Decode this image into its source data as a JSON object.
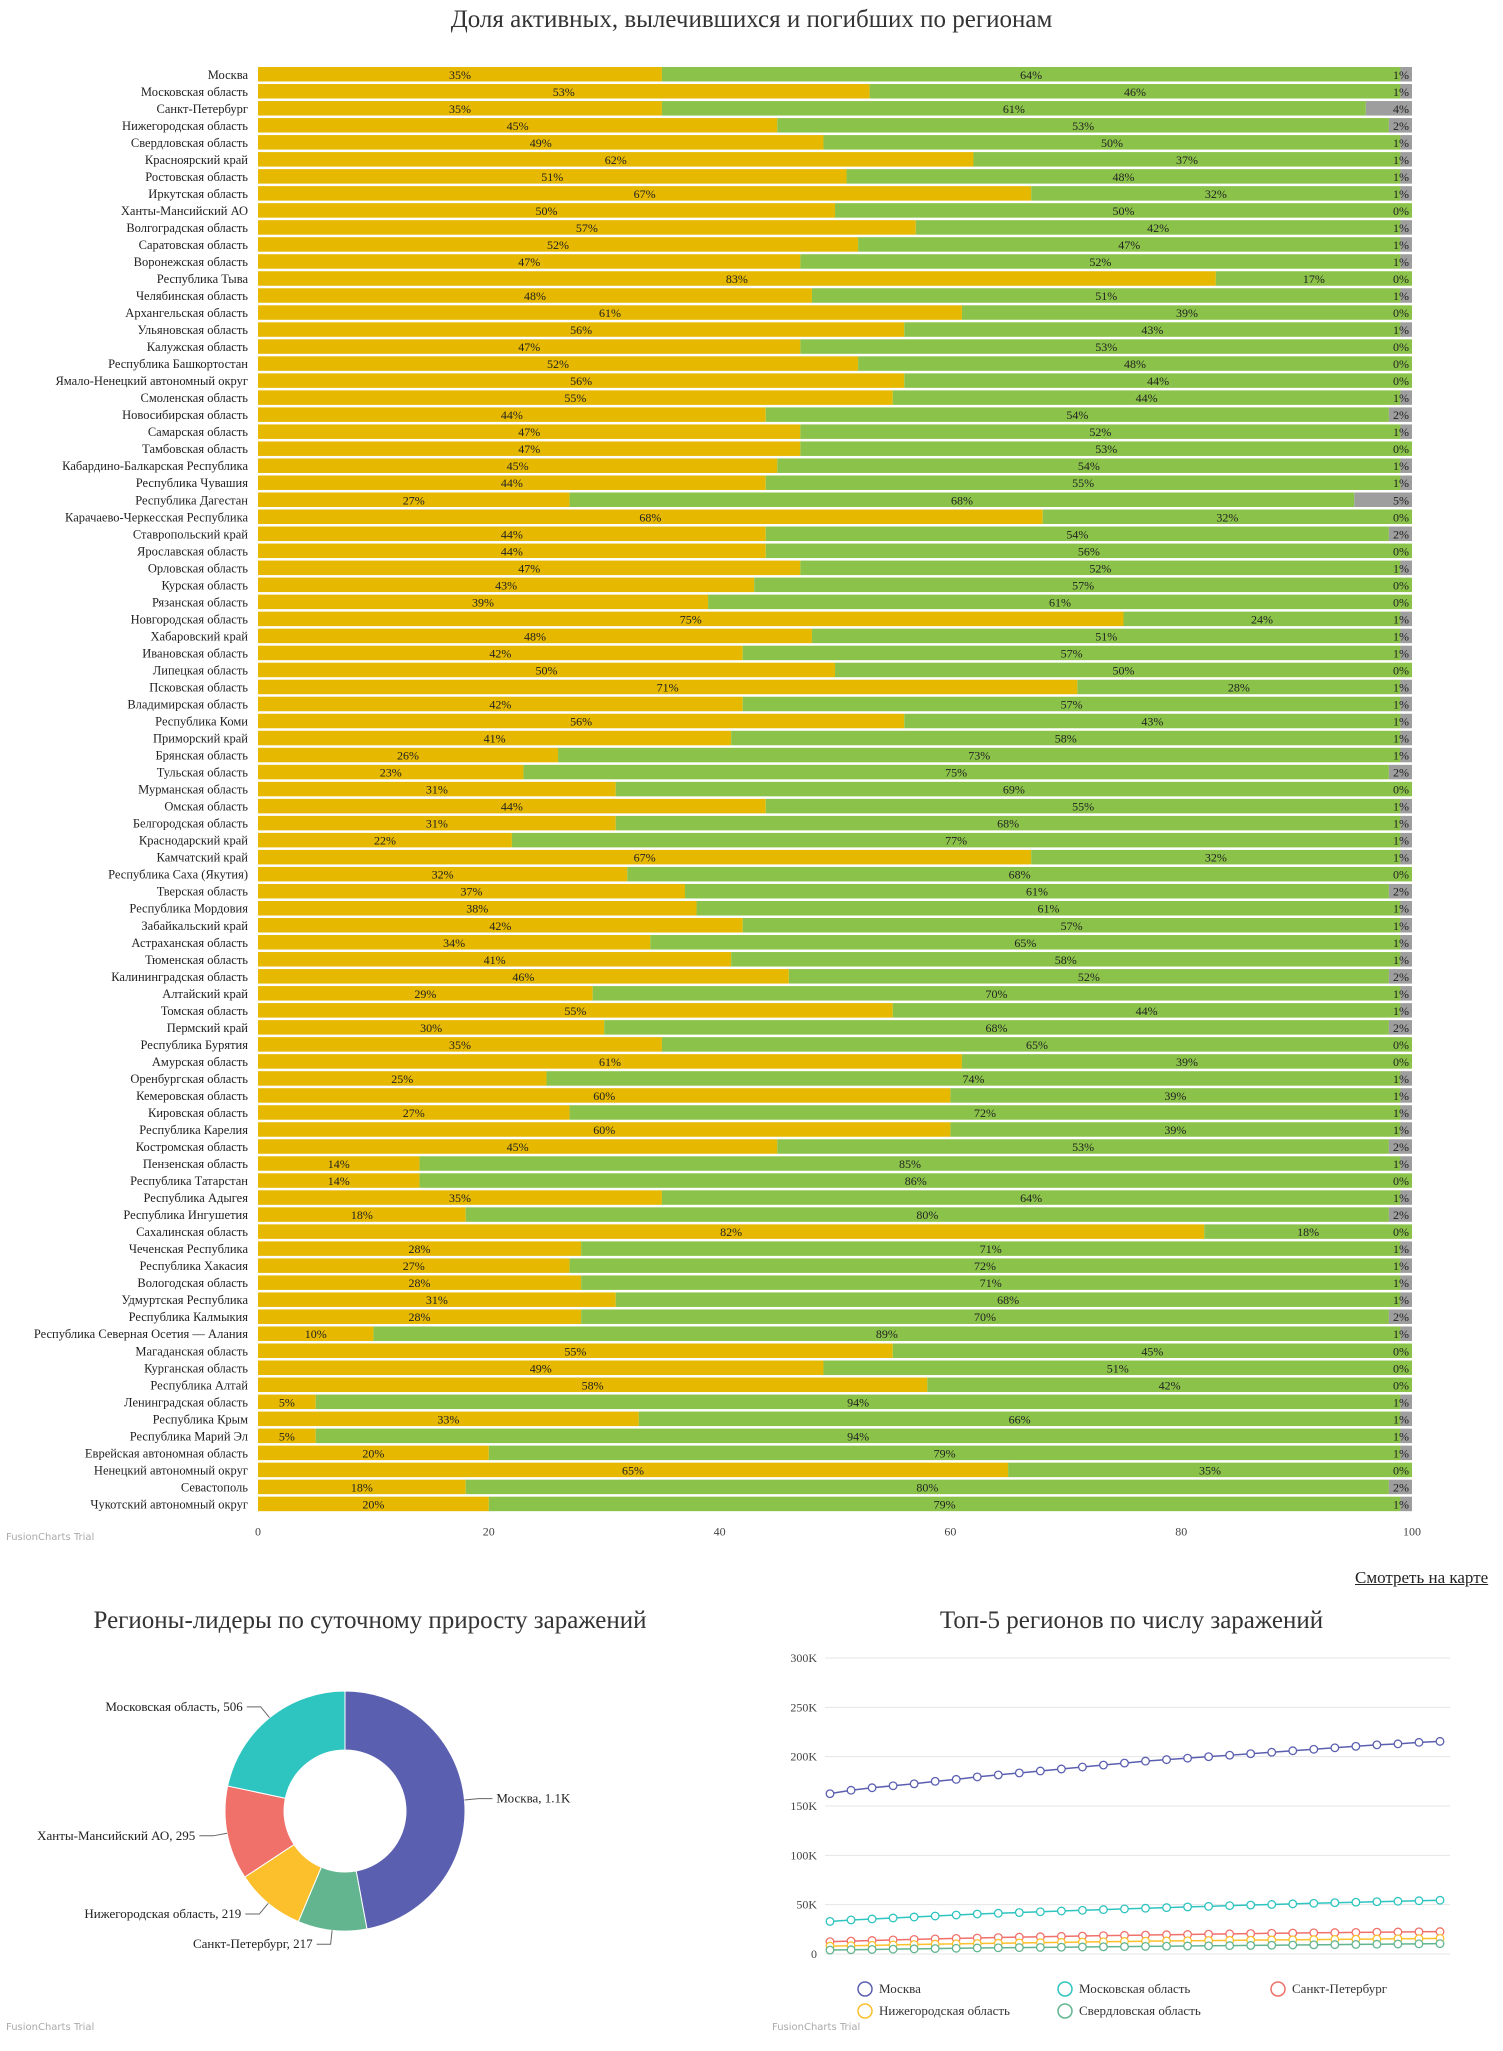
{
  "bar_chart": {
    "title": "Доля активных, вылечившихся и погибших по регионам",
    "trial_label": "FusionCharts Trial",
    "colors": {
      "active": "#e6b800",
      "recovered": "#8bc34a",
      "deaths": "#9e9e9e"
    },
    "x_ticks": [
      "0",
      "20",
      "40",
      "60",
      "80",
      "100"
    ]
  },
  "map_link": "Смотреть на карте",
  "donut_chart": {
    "title": "Регионы-лидеры по суточному приросту заражений",
    "trial_label": "FusionCharts Trial"
  },
  "line_chart": {
    "title": "Топ-5 регионов по числу заражений",
    "trial_label": "FusionCharts Trial",
    "y_ticks": [
      "300K",
      "250K",
      "200K",
      "150K",
      "100K",
      "50K",
      "0"
    ]
  },
  "chart_data": [
    {
      "type": "bar",
      "orientation": "horizontal",
      "stacked": true,
      "xlim": [
        0,
        100
      ],
      "categories": [
        "Москва",
        "Московская область",
        "Санкт-Петербург",
        "Нижегородская область",
        "Свердловская область",
        "Красноярский край",
        "Ростовская область",
        "Иркутская область",
        "Ханты-Мансийский АО",
        "Волгоградская область",
        "Саратовская область",
        "Воронежская область",
        "Республика Тыва",
        "Челябинская область",
        "Архангельская область",
        "Ульяновская область",
        "Калужская область",
        "Республика Башкортостан",
        "Ямало-Ненецкий автономный округ",
        "Смоленская область",
        "Новосибирская область",
        "Самарская область",
        "Тамбовская область",
        "Кабардино-Балкарская Республика",
        "Республика Чувашия",
        "Республика Дагестан",
        "Карачаево-Черкесская Республика",
        "Ставропольский край",
        "Ярославская область",
        "Орловская область",
        "Курская область",
        "Рязанская область",
        "Новгородская область",
        "Хабаровский край",
        "Ивановская область",
        "Липецкая область",
        "Псковская область",
        "Владимирская область",
        "Республика Коми",
        "Приморский край",
        "Брянская область",
        "Тульская область",
        "Мурманская область",
        "Омская область",
        "Белгородская область",
        "Краснодарский край",
        "Камчатский край",
        "Республика Саха (Якутия)",
        "Тверская область",
        "Республика Мордовия",
        "Забайкальский край",
        "Астраханская область",
        "Тюменская область",
        "Калининградская область",
        "Алтайский край",
        "Томская область",
        "Пермский край",
        "Республика Бурятия",
        "Амурская область",
        "Оренбургская область",
        "Кемеровская область",
        "Кировская область",
        "Республика Карелия",
        "Костромская область",
        "Пензенская область",
        "Республика Татарстан",
        "Республика Адыгея",
        "Республика Ингушетия",
        "Сахалинская область",
        "Чеченская Республика",
        "Республика Хакасия",
        "Вологодская область",
        "Удмуртская Республика",
        "Республика Калмыкия",
        "Республика Северная Осетия — Алания",
        "Магаданская область",
        "Курганская область",
        "Республика Алтай",
        "Ленинградская область",
        "Республика Крым",
        "Республика Марий Эл",
        "Еврейская автономная область",
        "Ненецкий автономный округ",
        "Севастополь",
        "Чукотский автономный округ"
      ],
      "series": [
        {
          "values": [
            35,
            53,
            35,
            45,
            49,
            62,
            51,
            67,
            50,
            57,
            52,
            47,
            83,
            48,
            61,
            56,
            47,
            52,
            56,
            55,
            44,
            47,
            47,
            45,
            44,
            27,
            68,
            44,
            44,
            47,
            43,
            39,
            75,
            48,
            42,
            50,
            71,
            42,
            56,
            41,
            26,
            23,
            31,
            44,
            31,
            22,
            67,
            32,
            37,
            38,
            42,
            34,
            41,
            46,
            29,
            55,
            30,
            35,
            61,
            25,
            60,
            27,
            60,
            45,
            14,
            14,
            35,
            18,
            82,
            28,
            27,
            28,
            31,
            28,
            10,
            55,
            49,
            58,
            5,
            33,
            5,
            20,
            65,
            18,
            20
          ]
        },
        {
          "values": [
            64,
            46,
            61,
            53,
            50,
            37,
            48,
            32,
            50,
            42,
            47,
            52,
            17,
            51,
            39,
            43,
            53,
            48,
            44,
            44,
            54,
            52,
            53,
            54,
            55,
            68,
            32,
            54,
            56,
            52,
            57,
            61,
            24,
            51,
            57,
            50,
            28,
            57,
            43,
            58,
            73,
            75,
            69,
            55,
            68,
            77,
            32,
            68,
            61,
            61,
            57,
            65,
            58,
            52,
            70,
            44,
            68,
            65,
            39,
            74,
            39,
            72,
            39,
            53,
            85,
            86,
            64,
            80,
            18,
            71,
            72,
            71,
            68,
            70,
            89,
            45,
            51,
            42,
            94,
            66,
            94,
            79,
            35,
            80,
            79
          ]
        },
        {
          "values": [
            1,
            1,
            4,
            2,
            1,
            1,
            1,
            1,
            0,
            1,
            1,
            1,
            0,
            1,
            0,
            1,
            0,
            0,
            0,
            1,
            2,
            1,
            0,
            1,
            1,
            5,
            0,
            2,
            0,
            1,
            0,
            0,
            1,
            1,
            1,
            0,
            1,
            1,
            1,
            1,
            1,
            2,
            0,
            1,
            1,
            1,
            1,
            0,
            2,
            1,
            1,
            1,
            1,
            2,
            1,
            1,
            2,
            0,
            0,
            1,
            1,
            1,
            1,
            2,
            1,
            0,
            1,
            2,
            0,
            1,
            1,
            1,
            1,
            2,
            1,
            0,
            0,
            0,
            1,
            1,
            1,
            1,
            0,
            2,
            1
          ]
        }
      ]
    },
    {
      "type": "pie",
      "donut": true,
      "categories": [
        "Москва",
        "Санкт-Петербург",
        "Нижегородская область",
        "Ханты-Мансийский АО",
        "Московская область"
      ],
      "values": [
        1100,
        217,
        219,
        295,
        506
      ],
      "labels": [
        "Москва, 1.1K",
        "Санкт-Петербург, 217",
        "Нижегородская область, 219",
        "Ханты-Мансийский АО, 295",
        "Московская область, 506"
      ],
      "colors": [
        "#5b5fb0",
        "#62b58f",
        "#fcc02c",
        "#f0706a",
        "#2ec4c0"
      ]
    },
    {
      "type": "line",
      "ylim": [
        0,
        300000
      ],
      "grid": true,
      "legend": "bottom",
      "series": [
        {
          "name": "Москва",
          "color": "#5b5fb0",
          "values": [
            162500,
            166000,
            168500,
            170500,
            172500,
            175000,
            177000,
            179500,
            181500,
            183500,
            185500,
            187500,
            189500,
            191500,
            193500,
            195500,
            197000,
            198500,
            200000,
            201500,
            203000,
            204500,
            206000,
            207500,
            209000,
            210500,
            212000,
            213000,
            214500,
            215500
          ]
        },
        {
          "name": "Московская область",
          "color": "#2ec4c0",
          "values": [
            33000,
            34500,
            35500,
            36500,
            37500,
            38500,
            39500,
            40500,
            41300,
            42000,
            42800,
            43600,
            44300,
            45000,
            45700,
            46400,
            47000,
            47700,
            48300,
            49000,
            49600,
            50200,
            50800,
            51400,
            52000,
            52500,
            53000,
            53500,
            54000,
            54500
          ]
        },
        {
          "name": "Санкт-Петербург",
          "color": "#f0706a",
          "values": [
            12500,
            13100,
            13700,
            14300,
            14800,
            15300,
            15800,
            16200,
            16700,
            17100,
            17500,
            17900,
            18200,
            18600,
            18900,
            19200,
            19500,
            19800,
            20100,
            20400,
            20700,
            21000,
            21200,
            21500,
            21700,
            21900,
            22100,
            22300,
            22500,
            22700
          ]
        },
        {
          "name": "Нижегородская область",
          "color": "#fcc02c",
          "values": [
            8000,
            8400,
            8800,
            9200,
            9600,
            10000,
            10300,
            10600,
            10900,
            11200,
            11500,
            11800,
            12100,
            12400,
            12700,
            13000,
            13200,
            13400,
            13600,
            13800,
            14000,
            14200,
            14400,
            14600,
            14800,
            15000,
            15200,
            15400,
            15600,
            15800
          ]
        },
        {
          "name": "Свердловская область",
          "color": "#62b58f",
          "values": [
            4000,
            4300,
            4600,
            4900,
            5200,
            5500,
            5800,
            6100,
            6300,
            6500,
            6700,
            6900,
            7100,
            7300,
            7500,
            7700,
            7900,
            8100,
            8300,
            8500,
            8700,
            8900,
            9100,
            9300,
            9500,
            9700,
            9900,
            10100,
            10300,
            10500
          ]
        }
      ]
    }
  ]
}
